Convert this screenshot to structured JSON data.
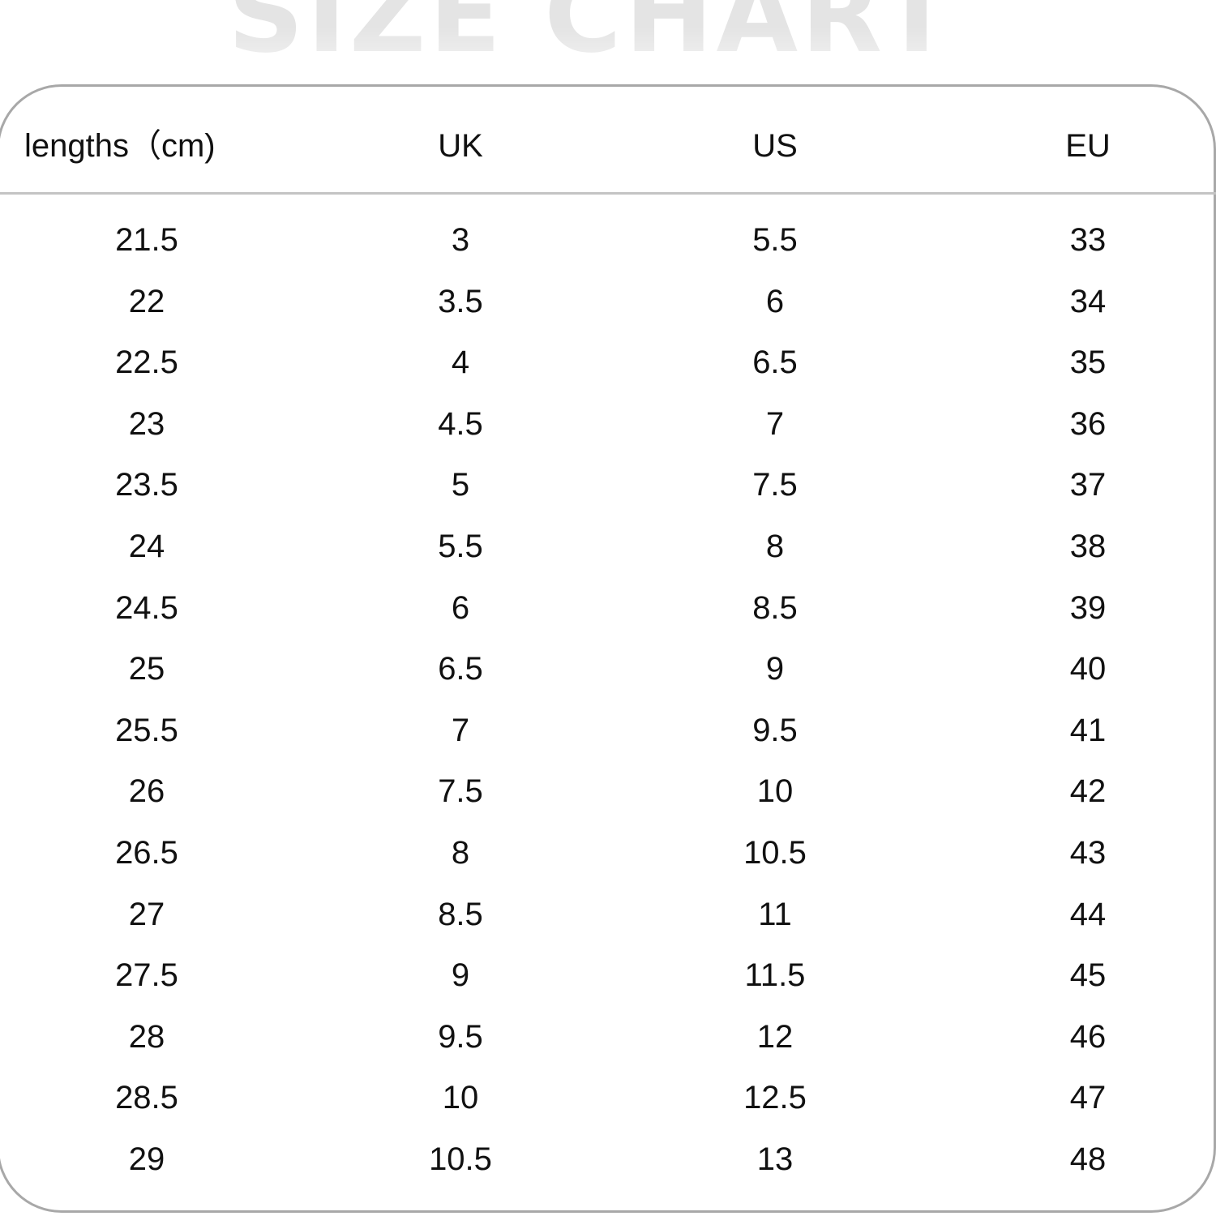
{
  "title": "SIZE CHART",
  "headers": [
    "lengths（cm)",
    "UK",
    "US",
    "EU"
  ],
  "rows": [
    [
      "21.5",
      "3",
      "5.5",
      "33"
    ],
    [
      "22",
      "3.5",
      "6",
      "34"
    ],
    [
      "22.5",
      "4",
      "6.5",
      "35"
    ],
    [
      "23",
      "4.5",
      "7",
      "36"
    ],
    [
      "23.5",
      "5",
      "7.5",
      "37"
    ],
    [
      "24",
      "5.5",
      "8",
      "38"
    ],
    [
      "24.5",
      "6",
      "8.5",
      "39"
    ],
    [
      "25",
      "6.5",
      "9",
      "40"
    ],
    [
      "25.5",
      "7",
      "9.5",
      "41"
    ],
    [
      "26",
      "7.5",
      "10",
      "42"
    ],
    [
      "26.5",
      "8",
      "10.5",
      "43"
    ],
    [
      "27",
      "8.5",
      "11",
      "44"
    ],
    [
      "27.5",
      "9",
      "11.5",
      "45"
    ],
    [
      "28",
      "9.5",
      "12",
      "46"
    ],
    [
      "28.5",
      "10",
      "12.5",
      "47"
    ],
    [
      "29",
      "10.5",
      "13",
      "48"
    ]
  ]
}
